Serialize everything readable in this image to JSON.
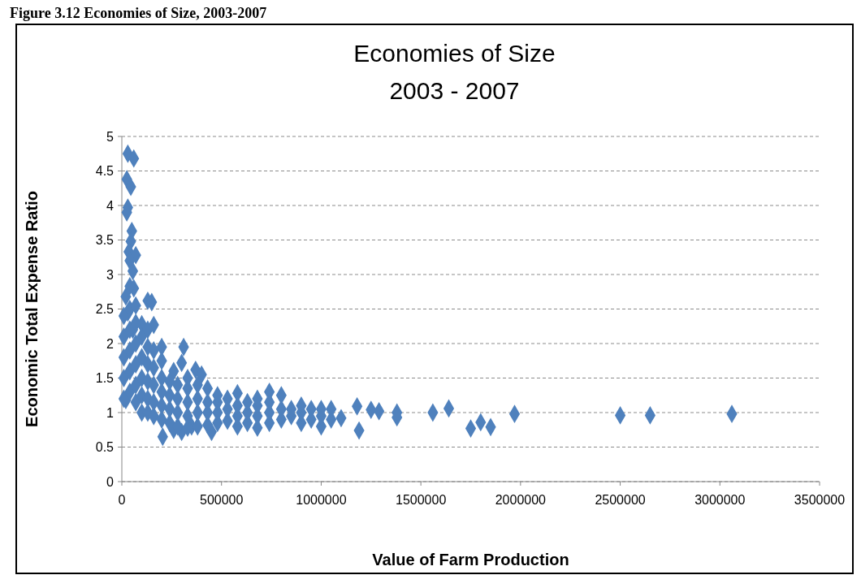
{
  "chart_data": {
    "type": "scatter",
    "title": "Economies of Size",
    "subtitle": "2003 - 2007",
    "xlabel": "Value of Farm Production",
    "ylabel": "Economic Total Expense Ratio",
    "annotations": [
      "Figure 3.12 Economies of Size, 2003-2007"
    ],
    "series": [
      {
        "color": "#4f81bd",
        "x": [
          30000,
          60000,
          25000,
          45000,
          30000,
          25000,
          50000,
          45000,
          35000,
          70000,
          40000,
          55000,
          60000,
          40000,
          20000,
          130000,
          150000,
          30000,
          100000,
          160000,
          55000,
          200000,
          310000,
          300000,
          260000,
          370000,
          400000,
          20000,
          205000,
          300000,
          260000,
          450000,
          350000,
          1180000,
          1190000,
          1250000,
          1290000,
          1380000,
          1380000,
          1560000,
          1640000,
          1750000,
          1800000,
          1850000,
          1970000,
          2500000,
          2650000,
          3060000,
          10000,
          10000,
          10000,
          10000,
          10000,
          40000,
          40000,
          40000,
          40000,
          40000,
          70000,
          70000,
          70000,
          70000,
          70000,
          70000,
          100000,
          100000,
          100000,
          100000,
          100000,
          130000,
          130000,
          130000,
          130000,
          130000,
          130000,
          160000,
          160000,
          160000,
          160000,
          160000,
          200000,
          200000,
          200000,
          200000,
          200000,
          240000,
          240000,
          240000,
          240000,
          280000,
          280000,
          280000,
          280000,
          330000,
          330000,
          330000,
          330000,
          330000,
          380000,
          380000,
          380000,
          380000,
          430000,
          430000,
          430000,
          430000,
          480000,
          480000,
          480000,
          480000,
          530000,
          530000,
          530000,
          580000,
          580000,
          580000,
          580000,
          630000,
          630000,
          630000,
          680000,
          680000,
          680000,
          680000,
          740000,
          740000,
          740000,
          740000,
          800000,
          800000,
          800000,
          850000,
          850000,
          900000,
          900000,
          900000,
          950000,
          950000,
          1000000,
          1000000,
          1000000,
          1050000,
          1050000,
          1100000
        ],
        "values": [
          4.75,
          4.68,
          4.38,
          4.27,
          3.97,
          3.9,
          3.63,
          3.48,
          3.33,
          3.28,
          3.2,
          3.05,
          2.8,
          2.83,
          2.68,
          2.62,
          2.6,
          2.45,
          2.28,
          2.27,
          2.2,
          1.95,
          1.95,
          1.72,
          1.6,
          1.62,
          1.55,
          1.18,
          0.65,
          0.72,
          0.75,
          0.72,
          0.8,
          1.09,
          0.74,
          1.04,
          1.02,
          1.0,
          0.93,
          1.0,
          1.06,
          0.77,
          0.86,
          0.79,
          0.98,
          0.96,
          0.96,
          0.98,
          1.2,
          1.5,
          1.8,
          2.1,
          2.4,
          1.3,
          1.6,
          1.9,
          2.2,
          2.5,
          1.15,
          1.4,
          1.7,
          2.0,
          2.3,
          2.55,
          1.0,
          1.25,
          1.5,
          1.8,
          2.1,
          1.0,
          1.2,
          1.45,
          1.7,
          1.95,
          2.2,
          0.95,
          1.15,
          1.4,
          1.65,
          1.9,
          0.9,
          1.1,
          1.3,
          1.5,
          1.75,
          0.85,
          1.05,
          1.25,
          1.45,
          0.8,
          1.0,
          1.2,
          1.4,
          0.78,
          0.95,
          1.15,
          1.35,
          1.5,
          0.8,
          1.0,
          1.2,
          1.4,
          0.82,
          1.0,
          1.15,
          1.35,
          0.85,
          1.0,
          1.15,
          1.25,
          0.88,
          1.05,
          1.2,
          0.8,
          0.95,
          1.1,
          1.28,
          0.85,
          1.0,
          1.15,
          0.78,
          0.95,
          1.1,
          1.2,
          0.85,
          1.0,
          1.15,
          1.3,
          0.9,
          1.05,
          1.25,
          0.95,
          1.05,
          0.85,
          1.0,
          1.1,
          0.9,
          1.05,
          0.8,
          0.95,
          1.05,
          0.9,
          1.05,
          0.92
        ]
      }
    ],
    "xlim": [
      0,
      3500000
    ],
    "xticks": [
      0,
      500000,
      1000000,
      1500000,
      2000000,
      2500000,
      3000000,
      3500000
    ],
    "ylim": [
      0,
      5
    ],
    "yticks": [
      0,
      0.5,
      1,
      1.5,
      2,
      2.5,
      3,
      3.5,
      4,
      4.5,
      5
    ],
    "grid": "y",
    "marker": "diamond"
  }
}
